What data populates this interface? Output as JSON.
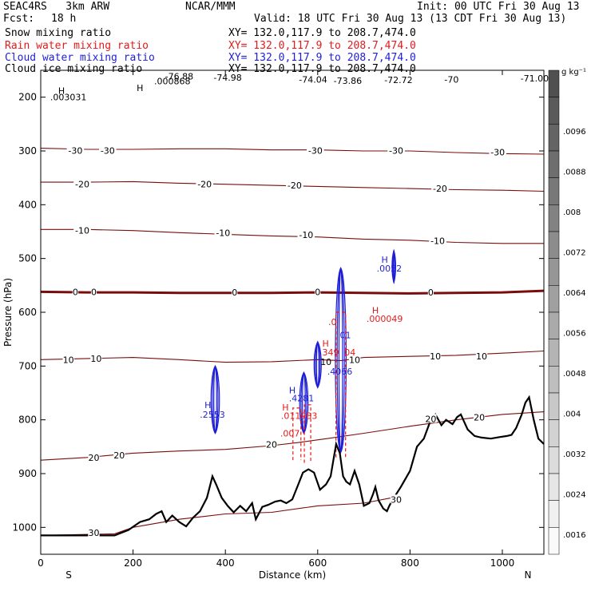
{
  "header": {
    "project": "SEAC4RS   3km ARW",
    "org": "NCAR/MMM",
    "init": "Init: 00 UTC Fri 30 Aug 13",
    "fcst_label": "Fcst:",
    "fcst_value": "18 h",
    "valid": "Valid: 18 UTC Fri 30 Aug 13 (13 CDT Fri 30 Aug 13)",
    "fields": [
      {
        "label": "Snow mixing ratio",
        "xy": "XY= 132.0,117.9 to 208.7,474.0",
        "color": "#000000"
      },
      {
        "label": "Rain water mixing ratio",
        "xy": "XY= 132.0,117.9 to 208.7,474.0",
        "color": "#e41a1c"
      },
      {
        "label": "Cloud water mixing ratio",
        "xy": "XY= 132.0,117.9 to 208.7,474.0",
        "color": "#1f1fd6"
      },
      {
        "label": "Cloud ice mixing ratio",
        "xy": "XY= 132.0,117.9 to 208.7,474.0",
        "color": "#000000"
      }
    ]
  },
  "chart_data": {
    "type": "cross-section",
    "xlabel": "Distance (km)",
    "ylabel": "Pressure (hPa)",
    "xlim": [
      0,
      1090
    ],
    "ylim": [
      1050,
      150
    ],
    "x_ticks": [
      0,
      200,
      400,
      600,
      800,
      1000
    ],
    "y_ticks": [
      200,
      300,
      400,
      500,
      600,
      700,
      800,
      900,
      1000
    ],
    "x_end_labels": {
      "left": "S",
      "right": "N"
    },
    "colorbar": {
      "unit": "g kg⁻¹",
      "labels": [
        ".0096",
        ".0088",
        ".008",
        ".0072",
        ".0064",
        ".0056",
        ".0048",
        ".004",
        ".0032",
        ".0024",
        ".0016"
      ],
      "levels": 18
    },
    "terrain": [
      [
        0,
        1015
      ],
      [
        90,
        1015
      ],
      [
        160,
        1015
      ],
      [
        190,
        1005
      ],
      [
        215,
        990
      ],
      [
        235,
        985
      ],
      [
        250,
        975
      ],
      [
        262,
        970
      ],
      [
        272,
        990
      ],
      [
        285,
        978
      ],
      [
        300,
        990
      ],
      [
        315,
        998
      ],
      [
        330,
        982
      ],
      [
        345,
        970
      ],
      [
        360,
        945
      ],
      [
        372,
        905
      ],
      [
        380,
        920
      ],
      [
        392,
        945
      ],
      [
        405,
        960
      ],
      [
        418,
        972
      ],
      [
        432,
        960
      ],
      [
        445,
        970
      ],
      [
        458,
        955
      ],
      [
        466,
        985
      ],
      [
        480,
        962
      ],
      [
        493,
        958
      ],
      [
        508,
        952
      ],
      [
        520,
        950
      ],
      [
        532,
        955
      ],
      [
        545,
        948
      ],
      [
        558,
        920
      ],
      [
        568,
        898
      ],
      [
        580,
        892
      ],
      [
        592,
        898
      ],
      [
        605,
        930
      ],
      [
        618,
        920
      ],
      [
        628,
        905
      ],
      [
        635,
        870
      ],
      [
        640,
        845
      ],
      [
        648,
        862
      ],
      [
        655,
        905
      ],
      [
        662,
        915
      ],
      [
        670,
        920
      ],
      [
        680,
        895
      ],
      [
        690,
        920
      ],
      [
        700,
        960
      ],
      [
        712,
        955
      ],
      [
        720,
        938
      ],
      [
        725,
        925
      ],
      [
        732,
        950
      ],
      [
        742,
        965
      ],
      [
        750,
        970
      ],
      [
        755,
        960
      ],
      [
        765,
        945
      ],
      [
        780,
        925
      ],
      [
        800,
        895
      ],
      [
        815,
        850
      ],
      [
        830,
        835
      ],
      [
        845,
        800
      ],
      [
        855,
        790
      ],
      [
        868,
        810
      ],
      [
        878,
        800
      ],
      [
        892,
        808
      ],
      [
        902,
        795
      ],
      [
        910,
        790
      ],
      [
        925,
        818
      ],
      [
        940,
        830
      ],
      [
        955,
        833
      ],
      [
        975,
        835
      ],
      [
        995,
        832
      ],
      [
        1010,
        830
      ],
      [
        1020,
        828
      ],
      [
        1030,
        815
      ],
      [
        1042,
        790
      ],
      [
        1050,
        768
      ],
      [
        1058,
        758
      ],
      [
        1068,
        800
      ],
      [
        1078,
        835
      ],
      [
        1090,
        845
      ]
    ],
    "temperature_contours": [
      {
        "label": "30",
        "points": [
          [
            0,
            1015
          ],
          [
            160,
            1012
          ],
          [
            200,
            1000
          ],
          [
            300,
            985
          ],
          [
            400,
            975
          ],
          [
            500,
            972
          ],
          [
            600,
            960
          ],
          [
            700,
            955
          ],
          [
            760,
            945
          ]
        ]
      },
      {
        "label": "20",
        "points": [
          [
            0,
            875
          ],
          [
            100,
            870
          ],
          [
            200,
            862
          ],
          [
            300,
            858
          ],
          [
            400,
            855
          ],
          [
            500,
            848
          ],
          [
            560,
            842
          ],
          [
            620,
            835
          ],
          [
            700,
            825
          ],
          [
            800,
            812
          ],
          [
            900,
            800
          ],
          [
            1000,
            790
          ],
          [
            1090,
            785
          ]
        ]
      },
      {
        "label": "10",
        "points": [
          [
            0,
            688
          ],
          [
            100,
            686
          ],
          [
            200,
            684
          ],
          [
            300,
            688
          ],
          [
            400,
            693
          ],
          [
            500,
            692
          ],
          [
            600,
            688
          ],
          [
            650,
            690
          ],
          [
            700,
            684
          ],
          [
            800,
            682
          ],
          [
            900,
            680
          ],
          [
            1000,
            676
          ],
          [
            1090,
            672
          ]
        ]
      },
      {
        "label": "0",
        "points": [
          [
            0,
            562
          ],
          [
            100,
            563
          ],
          [
            200,
            563
          ],
          [
            300,
            564
          ],
          [
            400,
            564
          ],
          [
            500,
            564
          ],
          [
            600,
            563
          ],
          [
            700,
            564
          ],
          [
            800,
            565
          ],
          [
            900,
            564
          ],
          [
            1000,
            563
          ],
          [
            1090,
            560
          ]
        ]
      },
      {
        "label": "-10",
        "points": [
          [
            0,
            446
          ],
          [
            100,
            446
          ],
          [
            200,
            448
          ],
          [
            300,
            452
          ],
          [
            400,
            455
          ],
          [
            500,
            458
          ],
          [
            600,
            460
          ],
          [
            700,
            464
          ],
          [
            800,
            466
          ],
          [
            900,
            470
          ],
          [
            1000,
            472
          ],
          [
            1090,
            472
          ]
        ]
      },
      {
        "label": "-20",
        "points": [
          [
            0,
            358
          ],
          [
            100,
            358
          ],
          [
            200,
            357
          ],
          [
            300,
            360
          ],
          [
            400,
            362
          ],
          [
            500,
            364
          ],
          [
            600,
            366
          ],
          [
            700,
            368
          ],
          [
            800,
            370
          ],
          [
            900,
            372
          ],
          [
            1000,
            373
          ],
          [
            1090,
            375
          ]
        ]
      },
      {
        "label": "-30",
        "points": [
          [
            0,
            295
          ],
          [
            100,
            297
          ],
          [
            200,
            297
          ],
          [
            300,
            296
          ],
          [
            400,
            296
          ],
          [
            500,
            298
          ],
          [
            600,
            298
          ],
          [
            700,
            300
          ],
          [
            800,
            300
          ],
          [
            900,
            303
          ],
          [
            1000,
            305
          ],
          [
            1090,
            306
          ]
        ]
      }
    ],
    "contour_labels": [
      {
        "text": "-74.98",
        "x": 405,
        "y": 163
      },
      {
        "text": "-76.88",
        "x": 300,
        "y": 161
      },
      {
        "text": "-74.04",
        "x": 590,
        "y": 167
      },
      {
        "text": "-73.86",
        "x": 665,
        "y": 169
      },
      {
        "text": "-72.72",
        "x": 775,
        "y": 168
      },
      {
        "text": "-70",
        "x": 890,
        "y": 167
      },
      {
        "text": "-71.00",
        "x": 1070,
        "y": 165
      },
      {
        "text": "-30",
        "x": 75,
        "y": 299
      },
      {
        "text": "-30",
        "x": 145,
        "y": 299
      },
      {
        "text": "-30",
        "x": 595,
        "y": 299
      },
      {
        "text": "-30",
        "x": 770,
        "y": 299
      },
      {
        "text": "-30",
        "x": 990,
        "y": 302
      },
      {
        "text": "-20",
        "x": 90,
        "y": 362
      },
      {
        "text": "-20",
        "x": 355,
        "y": 362
      },
      {
        "text": "-20",
        "x": 550,
        "y": 364
      },
      {
        "text": "-20",
        "x": 865,
        "y": 370
      },
      {
        "text": "-10",
        "x": 90,
        "y": 448
      },
      {
        "text": "-10",
        "x": 395,
        "y": 452
      },
      {
        "text": "-10",
        "x": 575,
        "y": 456
      },
      {
        "text": "-10",
        "x": 860,
        "y": 467
      },
      {
        "text": "0",
        "x": 75,
        "y": 562
      },
      {
        "text": "0",
        "x": 115,
        "y": 562
      },
      {
        "text": "0",
        "x": 420,
        "y": 563
      },
      {
        "text": "0",
        "x": 600,
        "y": 562
      },
      {
        "text": "0",
        "x": 845,
        "y": 563
      },
      {
        "text": "10",
        "x": 60,
        "y": 688
      },
      {
        "text": "10",
        "x": 120,
        "y": 686
      },
      {
        "text": "10",
        "x": 680,
        "y": 688
      },
      {
        "text": "10",
        "x": 855,
        "y": 682
      },
      {
        "text": "10",
        "x": 955,
        "y": 682
      },
      {
        "text": "20",
        "x": 115,
        "y": 870
      },
      {
        "text": "20",
        "x": 170,
        "y": 866
      },
      {
        "text": "20",
        "x": 500,
        "y": 846
      },
      {
        "text": "20",
        "x": 845,
        "y": 798
      },
      {
        "text": "20",
        "x": 950,
        "y": 795
      },
      {
        "text": "30",
        "x": 115,
        "y": 1010
      },
      {
        "text": "30",
        "x": 770,
        "y": 948
      }
    ],
    "annotations": [
      {
        "text": "H",
        "x": 215,
        "y": 183,
        "color": "#000000"
      },
      {
        "text": ".000868",
        "x": 285,
        "y": 170,
        "color": "#000000"
      },
      {
        "text": "H",
        "x": 45,
        "y": 188,
        "color": "#000000"
      },
      {
        "text": ".003031",
        "x": 60,
        "y": 200,
        "color": "#000000"
      },
      {
        "text": "H",
        "x": 745,
        "y": 502,
        "color": "#1f1fd6"
      },
      {
        "text": ".0052",
        "x": 755,
        "y": 518,
        "color": "#1f1fd6"
      },
      {
        "text": "H",
        "x": 725,
        "y": 596,
        "color": "#e41a1c"
      },
      {
        "text": ".000049",
        "x": 745,
        "y": 612,
        "color": "#e41a1c"
      },
      {
        "text": ".0",
        "x": 632,
        "y": 618,
        "color": "#e41a1c"
      },
      {
        "text": "01",
        "x": 660,
        "y": 642,
        "color": "#1f1fd6"
      },
      {
        "text": "H",
        "x": 617,
        "y": 658,
        "color": "#e41a1c"
      },
      {
        "text": ".349",
        "x": 625,
        "y": 674,
        "color": "#e41a1c"
      },
      {
        "text": "04",
        "x": 670,
        "y": 674,
        "color": "#e41a1c"
      },
      {
        "text": "10",
        "x": 618,
        "y": 692,
        "color": "#000000"
      },
      {
        "text": ".4066",
        "x": 648,
        "y": 710,
        "color": "#1f1fd6"
      },
      {
        "text": "H",
        "x": 545,
        "y": 745,
        "color": "#1f1fd6"
      },
      {
        "text": ".4281",
        "x": 565,
        "y": 760,
        "color": "#1f1fd6"
      },
      {
        "text": "H",
        "x": 530,
        "y": 777,
        "color": "#e41a1c"
      },
      {
        "text": ".011983",
        "x": 560,
        "y": 792,
        "color": "#e41a1c"
      },
      {
        "text": ".007",
        "x": 540,
        "y": 825,
        "color": "#e41a1c"
      },
      {
        "text": "H",
        "x": 362,
        "y": 772,
        "color": "#1f1fd6"
      },
      {
        "text": ".2553",
        "x": 372,
        "y": 790,
        "color": "#1f1fd6"
      }
    ],
    "cloud_water_cells": [
      {
        "cx": 378,
        "top": 700,
        "bottom": 825,
        "w": 14
      },
      {
        "cx": 570,
        "top": 712,
        "bottom": 825,
        "w": 14
      },
      {
        "cx": 600,
        "top": 655,
        "bottom": 740,
        "w": 12
      },
      {
        "cx": 650,
        "top": 518,
        "bottom": 860,
        "w": 18
      },
      {
        "cx": 765,
        "top": 485,
        "bottom": 545,
        "w": 6
      }
    ],
    "rain_water_cells": [
      {
        "cx": 555,
        "top": 778,
        "bottom": 875,
        "w": 10
      },
      {
        "cx": 578,
        "top": 772,
        "bottom": 880,
        "w": 8
      },
      {
        "cx": 650,
        "top": 600,
        "bottom": 870,
        "w": 12
      }
    ]
  }
}
